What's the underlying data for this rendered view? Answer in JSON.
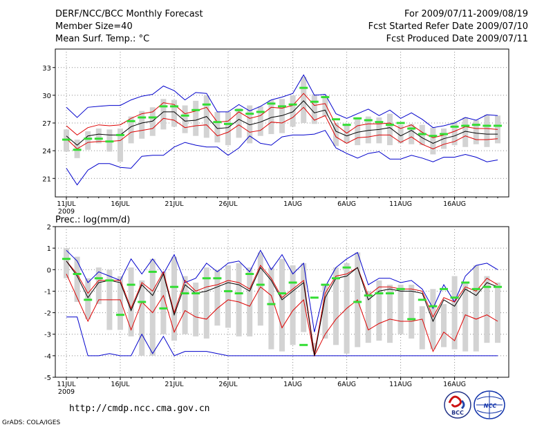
{
  "header": {
    "title": "DERF/NCC/BCC Monthly Forecast",
    "member_size": "Member Size=40",
    "variable": "Mean Surf. Temp.: °C",
    "period": "For 2009/07/11-2009/08/19",
    "started": "Fcst Started Refer Date 2009/07/10",
    "produced": "Fcst Produced Date 2009/07/11"
  },
  "footer": {
    "url": "http://cmdp.ncc.cma.gov.cn",
    "credit": "GrADS: COLA/IGES",
    "logo_bcc": "BCC",
    "logo_ncc": "NCC"
  },
  "colors": {
    "box": "#d3d3d3",
    "median": "#33dd33",
    "mean": "#000000",
    "spread": "#dd0000",
    "envelope": "#0000cc",
    "grid": "#888888"
  },
  "chart_data": [
    {
      "type": "line",
      "title": "Mean Surf. Temp.: °C",
      "ylim": [
        19,
        35
      ],
      "yticks": [
        21,
        24,
        27,
        30,
        33
      ],
      "x_tick_labels": [
        "11JUL",
        "16JUL",
        "21JUL",
        "26JUL",
        "1AUG",
        "6AUG",
        "11AUG",
        "16AUG"
      ],
      "x_tick_days": [
        0,
        5,
        10,
        15,
        21,
        26,
        31,
        36
      ],
      "year_label": "2009",
      "days": 40,
      "series": [
        {
          "name": "max",
          "values": [
            28.7,
            27.6,
            28.7,
            28.8,
            28.9,
            28.9,
            29.5,
            29.9,
            30.1,
            31.0,
            30.5,
            29.5,
            30.3,
            30.2,
            28.2,
            28.2,
            29.0,
            28.3,
            28.8,
            29.5,
            29.8,
            30.2,
            32.2,
            30.0,
            30.1,
            28.0,
            27.5,
            28.0,
            28.5,
            27.8,
            28.4,
            27.5,
            28.1,
            27.4,
            26.5,
            26.7,
            27.0,
            27.6,
            27.3,
            27.9,
            27.8
          ]
        },
        {
          "name": "p75",
          "values": [
            26.7,
            25.7,
            26.5,
            26.8,
            26.7,
            26.8,
            27.5,
            28.0,
            28.2,
            29.2,
            29.0,
            28.0,
            28.3,
            28.7,
            27.1,
            27.2,
            28.2,
            27.5,
            27.8,
            28.7,
            28.6,
            28.9,
            30.2,
            28.9,
            29.1,
            26.8,
            25.9,
            26.7,
            26.9,
            26.9,
            27.0,
            26.4,
            26.8,
            26.0,
            25.4,
            25.7,
            26.1,
            26.6,
            26.4,
            26.4,
            26.3
          ]
        },
        {
          "name": "mean",
          "values": [
            25.6,
            24.6,
            25.6,
            25.8,
            25.7,
            25.7,
            26.6,
            27.0,
            27.2,
            28.2,
            28.2,
            27.2,
            27.3,
            27.7,
            26.4,
            26.5,
            27.4,
            26.8,
            27.1,
            27.6,
            27.8,
            28.2,
            29.4,
            28.1,
            28.4,
            26.1,
            25.6,
            26.0,
            26.2,
            26.3,
            26.5,
            25.6,
            26.2,
            25.4,
            24.8,
            25.3,
            25.6,
            26.1,
            25.9,
            25.8,
            25.8
          ]
        },
        {
          "name": "p25",
          "values": [
            25.3,
            24.2,
            24.9,
            25.0,
            25.0,
            25.1,
            26.0,
            26.2,
            26.4,
            27.5,
            27.3,
            26.5,
            26.7,
            26.8,
            25.6,
            26.0,
            26.8,
            26.0,
            26.2,
            27.1,
            27.0,
            27.6,
            28.7,
            27.3,
            27.8,
            25.5,
            24.8,
            25.4,
            25.5,
            25.7,
            25.7,
            24.9,
            25.5,
            24.7,
            24.2,
            24.7,
            25.0,
            25.6,
            25.2,
            25.2,
            25.3
          ]
        },
        {
          "name": "min",
          "values": [
            22.1,
            20.3,
            21.9,
            22.6,
            22.6,
            22.2,
            22.1,
            23.4,
            23.5,
            23.5,
            24.4,
            24.9,
            24.6,
            24.4,
            24.4,
            23.5,
            24.3,
            25.6,
            24.8,
            24.6,
            25.5,
            25.7,
            25.7,
            25.8,
            26.2,
            24.3,
            23.7,
            23.2,
            23.7,
            23.9,
            23.1,
            23.1,
            23.5,
            23.2,
            22.8,
            23.3,
            23.3,
            23.6,
            23.3,
            22.8,
            23.0
          ]
        },
        {
          "name": "median",
          "values": [
            25.2,
            24.1,
            25.3,
            25.3,
            25.0,
            25.7,
            27.2,
            27.6,
            27.6,
            28.8,
            28.8,
            27.8,
            28.4,
            29.0,
            27.1,
            26.9,
            28.4,
            28.0,
            28.2,
            29.1,
            28.8,
            29.0,
            30.8,
            29.3,
            29.8,
            27.4,
            26.8,
            27.5,
            27.3,
            27.1,
            26.8,
            27.0,
            26.4,
            25.8,
            25.6,
            25.8,
            26.6,
            26.7,
            26.8,
            26.7,
            26.7
          ]
        },
        {
          "name": "box_top",
          "values": [
            26.3,
            25.2,
            26.1,
            26.4,
            26.3,
            26.4,
            27.7,
            28.3,
            28.7,
            29.6,
            29.5,
            28.9,
            29.4,
            30.0,
            28.2,
            28.2,
            28.6,
            28.9,
            28.8,
            29.5,
            29.6,
            30.0,
            32.0,
            30.1,
            30.0,
            27.0,
            26.8,
            27.6,
            27.7,
            27.6,
            28.0,
            26.8,
            26.9,
            26.8,
            26.5,
            26.4,
            27.1,
            27.6,
            27.3,
            27.9,
            27.8
          ]
        },
        {
          "name": "box_bottom",
          "values": [
            23.9,
            23.2,
            24.1,
            24.8,
            23.9,
            22.8,
            24.8,
            25.3,
            25.6,
            26.3,
            26.6,
            25.9,
            25.6,
            25.4,
            24.9,
            24.6,
            25.4,
            24.8,
            25.6,
            25.8,
            25.9,
            26.6,
            27.0,
            26.9,
            27.7,
            24.5,
            24.8,
            24.6,
            24.8,
            24.8,
            24.6,
            24.8,
            24.7,
            24.6,
            23.6,
            24.2,
            24.6,
            24.4,
            24.7,
            24.4,
            24.8
          ]
        }
      ]
    },
    {
      "type": "line",
      "title": "Prec.: log(mm/d)",
      "ylim": [
        -5,
        2
      ],
      "yticks": [
        -5,
        -4,
        -3,
        -2,
        -1,
        0,
        1,
        2
      ],
      "x_tick_labels": [
        "11JUL",
        "16JUL",
        "21JUL",
        "26JUL",
        "1AUG",
        "6AUG",
        "11AUG",
        "16AUG"
      ],
      "x_tick_days": [
        0,
        5,
        10,
        15,
        21,
        26,
        31,
        36
      ],
      "year_label": "2009",
      "days": 40,
      "series": [
        {
          "name": "max",
          "values": [
            0.9,
            0.4,
            -0.6,
            -0.1,
            -0.3,
            -0.5,
            0.5,
            -0.2,
            0.5,
            -0.2,
            0.7,
            -0.6,
            -0.4,
            0.3,
            -0.1,
            0.3,
            0.4,
            -0.1,
            0.9,
            0.0,
            0.7,
            -0.2,
            0.3,
            -2.9,
            -0.8,
            0.1,
            0.5,
            0.8,
            -0.7,
            -0.4,
            -0.4,
            -0.6,
            -0.5,
            -0.9,
            -1.8,
            -0.7,
            -1.5,
            -0.3,
            0.2,
            0.3,
            0.0
          ]
        },
        {
          "name": "p75",
          "values": [
            0.4,
            -0.2,
            -1.1,
            -0.5,
            -0.5,
            -0.5,
            -1.8,
            -0.6,
            -1.0,
            -0.1,
            -2.0,
            -0.5,
            -1.0,
            -0.8,
            -0.7,
            -0.5,
            -0.6,
            -0.9,
            0.2,
            -0.4,
            -1.3,
            -0.9,
            -0.5,
            -3.9,
            -1.1,
            -0.3,
            -0.2,
            0.1,
            -1.2,
            -0.8,
            -0.8,
            -0.9,
            -0.9,
            -1.0,
            -2.2,
            -1.3,
            -1.5,
            -0.8,
            -1.0,
            -0.4,
            -0.7
          ]
        },
        {
          "name": "mean",
          "values": [
            0.4,
            -0.3,
            -1.3,
            -0.6,
            -0.5,
            -0.6,
            -1.9,
            -0.7,
            -1.2,
            -0.2,
            -2.1,
            -0.7,
            -1.1,
            -1.0,
            -0.8,
            -0.6,
            -0.7,
            -1.0,
            0.1,
            -0.5,
            -1.4,
            -1.0,
            -0.6,
            -4.0,
            -1.3,
            -0.4,
            -0.3,
            0.1,
            -1.4,
            -1.0,
            -0.9,
            -1.0,
            -1.0,
            -1.1,
            -2.4,
            -1.4,
            -1.7,
            -0.9,
            -1.2,
            -0.6,
            -0.8
          ]
        },
        {
          "name": "p25",
          "values": [
            -0.2,
            -1.3,
            -2.4,
            -1.4,
            -1.4,
            -1.4,
            -2.8,
            -1.5,
            -2.0,
            -1.2,
            -2.9,
            -1.9,
            -2.2,
            -2.3,
            -1.8,
            -1.4,
            -1.5,
            -1.7,
            -0.8,
            -1.2,
            -2.7,
            -1.9,
            -1.4,
            -4.0,
            -3.0,
            -2.3,
            -1.8,
            -1.4,
            -2.8,
            -2.5,
            -2.3,
            -2.4,
            -2.4,
            -2.3,
            -3.8,
            -2.9,
            -3.3,
            -2.1,
            -2.3,
            -2.1,
            -2.4
          ]
        },
        {
          "name": "min",
          "values": [
            -2.2,
            -2.2,
            -4.0,
            -4.0,
            -3.9,
            -4.0,
            -4.0,
            -3.0,
            -3.9,
            -3.1,
            -4.0,
            -3.8,
            -3.8,
            -3.8,
            -3.9,
            -4.0,
            -4.0,
            -4.0,
            -4.0,
            -4.0,
            -4.0,
            -4.0,
            -4.0,
            -4.0,
            -4.0,
            -4.0,
            -4.0,
            -4.0,
            -4.0,
            -4.0,
            -4.0,
            -4.0,
            -4.0,
            -4.0,
            -4.0,
            -4.0,
            -4.0,
            -4.0,
            -4.0,
            -4.0,
            -4.0
          ]
        },
        {
          "name": "median",
          "values": [
            0.5,
            -0.2,
            -1.4,
            -0.4,
            -0.5,
            -2.1,
            -0.7,
            -1.5,
            -0.1,
            -1.8,
            -0.8,
            -1.1,
            -1.1,
            -0.4,
            -0.4,
            -1.0,
            -1.1,
            -0.2,
            -0.7,
            -1.6,
            -1.1,
            -0.6,
            -3.5,
            -1.3,
            -0.7,
            -0.4,
            0.1,
            -1.5,
            -1.2,
            -1.1,
            -1.1,
            -0.9,
            -2.3,
            -1.4,
            -1.7,
            -0.9,
            -1.3,
            -0.6,
            -0.9,
            -0.8,
            -0.8
          ]
        },
        {
          "name": "box_top",
          "values": [
            1.0,
            0.6,
            -0.4,
            0.1,
            0.0,
            -0.3,
            0.1,
            -0.5,
            0.5,
            -0.1,
            0.6,
            -0.3,
            -0.6,
            0.1,
            0.0,
            0.2,
            0.3,
            0.1,
            0.8,
            0.1,
            0.5,
            0.2,
            0.3,
            -3.4,
            -0.7,
            0.1,
            0.3,
            0.8,
            -1.0,
            -0.5,
            -0.7,
            -0.7,
            -0.7,
            -1.7,
            -0.9,
            -1.6,
            -0.3,
            -0.6,
            0.2,
            -0.3,
            -0.6
          ]
        },
        {
          "name": "box_bottom",
          "values": [
            -0.4,
            -1.5,
            -2.3,
            -1.6,
            -2.8,
            -2.8,
            -3.1,
            -4.0,
            -4.0,
            -3.0,
            -3.3,
            -3.0,
            -3.1,
            -3.2,
            -2.6,
            -2.7,
            -3.1,
            -3.1,
            -2.6,
            -3.7,
            -3.8,
            -3.5,
            -2.9,
            -3.8,
            -3.2,
            -3.5,
            -3.9,
            -3.6,
            -3.4,
            -3.3,
            -3.4,
            -3.0,
            -3.2,
            -3.7,
            -3.7,
            -3.6,
            -3.7,
            -3.8,
            -3.8,
            -3.4,
            -3.4
          ]
        }
      ]
    }
  ]
}
